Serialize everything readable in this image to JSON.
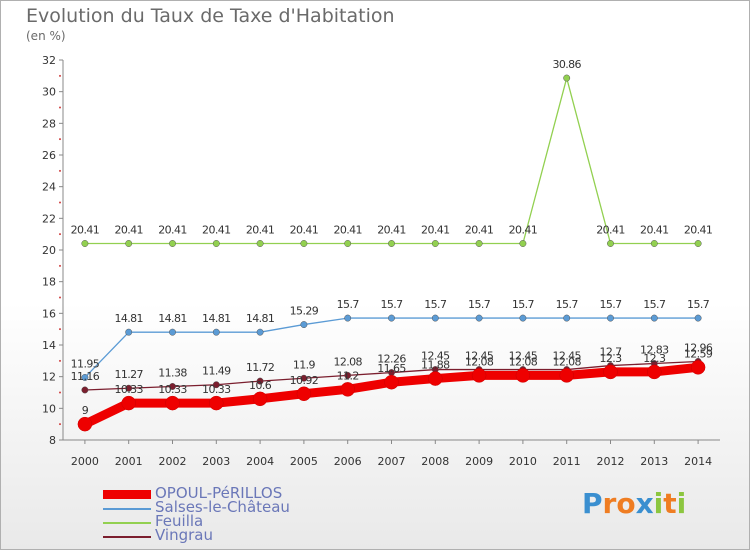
{
  "title": "Evolution du Taux de Taxe d'Habitation",
  "unit_label": "(en %)",
  "logo": {
    "text": [
      "P",
      "r",
      "o",
      "x",
      "i",
      "t",
      "i"
    ],
    "colors": [
      "#3a8fd0",
      "#ef7d22",
      "#ef7d22",
      "#3a8fd0",
      "#8cc63f",
      "#ef7d22",
      "#8cc63f"
    ]
  },
  "chart_data": {
    "type": "line",
    "x": [
      "2000",
      "2001",
      "2002",
      "2003",
      "2004",
      "2005",
      "2006",
      "2007",
      "2008",
      "2009",
      "2010",
      "2011",
      "2012",
      "2013",
      "2014"
    ],
    "ylim": [
      8,
      32
    ],
    "yticks": [
      "8",
      "10",
      "12",
      "14",
      "16",
      "18",
      "20",
      "22",
      "24",
      "26",
      "28",
      "30",
      "32"
    ],
    "grid": false,
    "legend_position": "bottom-left",
    "series": [
      {
        "name": "OPOUL-PéRILLOS",
        "color": "#ee0000",
        "values": [
          9,
          10.33,
          10.33,
          10.33,
          10.6,
          10.92,
          11.2,
          11.65,
          11.88,
          12.08,
          12.08,
          12.08,
          12.3,
          12.3,
          12.59
        ],
        "labels": [
          "9",
          "10.33",
          "10.33",
          "10.33",
          "10.6",
          "10.92",
          "11.2",
          "11.65",
          "11.88",
          "12.08",
          "12.08",
          "12.08",
          "12.3",
          "12.3",
          "12.59"
        ]
      },
      {
        "name": "Salses-le-Château",
        "color": "#5b9bd5",
        "values": [
          11.95,
          14.81,
          14.81,
          14.81,
          14.81,
          15.29,
          15.7,
          15.7,
          15.7,
          15.7,
          15.7,
          15.7,
          15.7,
          15.7,
          15.7
        ],
        "labels": [
          "11.95",
          "14.81",
          "14.81",
          "14.81",
          "14.81",
          "15.29",
          "15.7",
          "15.7",
          "15.7",
          "15.7",
          "15.7",
          "15.7",
          "15.7",
          "15.7",
          "15.7"
        ]
      },
      {
        "name": "Feuilla",
        "color": "#92d050",
        "values": [
          20.41,
          20.41,
          20.41,
          20.41,
          20.41,
          20.41,
          20.41,
          20.41,
          20.41,
          20.41,
          20.41,
          30.86,
          20.41,
          20.41,
          20.41
        ],
        "labels": [
          "20.41",
          "20.41",
          "20.41",
          "20.41",
          "20.41",
          "20.41",
          "20.41",
          "20.41",
          "20.41",
          "20.41",
          "20.41",
          "30.86",
          "20.41",
          "20.41",
          "20.41"
        ]
      },
      {
        "name": "Vingrau",
        "color": "#7b1e2e",
        "values": [
          11.16,
          11.27,
          11.38,
          11.49,
          11.72,
          11.9,
          12.08,
          12.26,
          12.45,
          12.45,
          12.45,
          12.45,
          12.7,
          12.83,
          12.96
        ],
        "labels": [
          "11.16",
          "11.27",
          "11.38",
          "11.49",
          "11.72",
          "11.9",
          "12.08",
          "12.26",
          "12.45",
          "12.45",
          "12.45",
          "12.45",
          "12.7",
          "12.83",
          "12.96"
        ]
      }
    ]
  }
}
